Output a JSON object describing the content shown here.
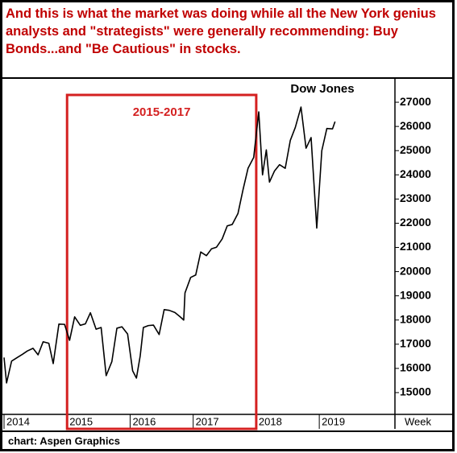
{
  "chart_data": {
    "type": "line",
    "title": "And this is what the market was doing while all the New York genius analysts and \"strategists\" were generally recommending: Buy Bonds...and \"Be Cautious\" in  stocks.",
    "annotation": "2015-2017",
    "highlight_range": [
      2015,
      2018
    ],
    "x_label": "Week",
    "source": "chart: Aspen Graphics",
    "x": [
      2014.0,
      2014.04,
      2014.12,
      2014.21,
      2014.29,
      2014.37,
      2014.46,
      2014.54,
      2014.62,
      2014.71,
      2014.78,
      2014.87,
      2014.96,
      2015.04,
      2015.12,
      2015.21,
      2015.29,
      2015.37,
      2015.46,
      2015.54,
      2015.62,
      2015.71,
      2015.79,
      2015.87,
      2015.96,
      2016.04,
      2016.1,
      2016.16,
      2016.21,
      2016.29,
      2016.37,
      2016.46,
      2016.54,
      2016.62,
      2016.71,
      2016.79,
      2016.85,
      2016.87,
      2016.96,
      2017.04,
      2017.12,
      2017.21,
      2017.29,
      2017.37,
      2017.46,
      2017.54,
      2017.62,
      2017.71,
      2017.79,
      2017.87,
      2017.96,
      2018.04,
      2018.1,
      2018.16,
      2018.21,
      2018.29,
      2018.37,
      2018.46,
      2018.54,
      2018.62,
      2018.71,
      2018.79,
      2018.87,
      2018.96,
      2019.04,
      2019.12,
      2019.21,
      2019.25
    ],
    "series": [
      {
        "name": "Dow Jones",
        "color": "#000000",
        "values": [
          16450,
          15400,
          16300,
          16450,
          16580,
          16720,
          16830,
          16560,
          17100,
          17040,
          16200,
          17830,
          17820,
          17160,
          18130,
          17780,
          17840,
          18300,
          17620,
          17690,
          15700,
          16280,
          17660,
          17720,
          17420,
          15900,
          15600,
          16520,
          17690,
          17770,
          17790,
          17400,
          18430,
          18400,
          18310,
          18140,
          18000,
          19120,
          19760,
          19860,
          20810,
          20660,
          20940,
          21010,
          21350,
          21890,
          21950,
          22400,
          23380,
          24270,
          24720,
          26600,
          24000,
          25030,
          23700,
          24160,
          24420,
          24270,
          25420,
          25960,
          26800,
          25100,
          25540,
          21800,
          24999,
          25916,
          25900,
          26200
        ]
      }
    ],
    "xlim": [
      2014,
      2020.2
    ],
    "xticks": [
      2014,
      2015,
      2016,
      2017,
      2018,
      2019
    ],
    "ylim": [
      14100,
      27900
    ],
    "yticks": [
      15000,
      16000,
      17000,
      18000,
      19000,
      20000,
      21000,
      22000,
      23000,
      24000,
      25000,
      26000,
      27000
    ],
    "annotation_color": "#d42020",
    "grid": false
  }
}
